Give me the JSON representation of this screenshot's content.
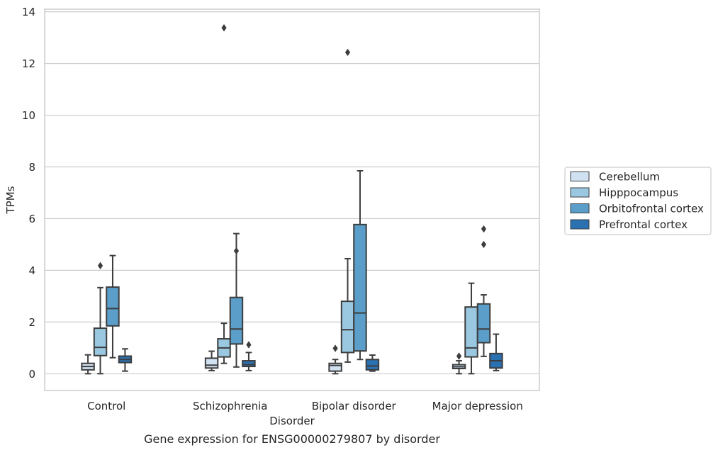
{
  "chart_data": {
    "type": "box",
    "caption": "Gene expression for ENSG00000279807 by disorder",
    "xlabel": "Disorder",
    "ylabel": "TPMs",
    "ylim": [
      -0.65,
      14.1
    ],
    "yticks": [
      0,
      2,
      4,
      6,
      8,
      10,
      12,
      14
    ],
    "grid": "horizontal",
    "legend_position": "right",
    "categories": [
      "Control",
      "Schizophrenia",
      "Bipolar disorder",
      "Major depression"
    ],
    "series": [
      {
        "name": "Cerebellum",
        "color": "#d0e1f2",
        "boxes": [
          {
            "min": 0.0,
            "q1": 0.15,
            "median": 0.28,
            "q3": 0.4,
            "max": 0.73,
            "outliers": []
          },
          {
            "min": 0.12,
            "q1": 0.22,
            "median": 0.33,
            "q3": 0.6,
            "max": 0.87,
            "outliers": []
          },
          {
            "min": 0.0,
            "q1": 0.1,
            "median": 0.32,
            "q3": 0.4,
            "max": 0.55,
            "outliers": [
              0.98
            ]
          },
          {
            "min": 0.0,
            "q1": 0.2,
            "median": 0.27,
            "q3": 0.35,
            "max": 0.5,
            "outliers": [
              0.68
            ]
          }
        ]
      },
      {
        "name": "Hipppocampus",
        "color": "#9ac8e0",
        "boxes": [
          {
            "min": 0.0,
            "q1": 0.7,
            "median": 1.02,
            "q3": 1.76,
            "max": 3.33,
            "outliers": [
              4.18
            ]
          },
          {
            "min": 0.4,
            "q1": 0.65,
            "median": 1.0,
            "q3": 1.35,
            "max": 1.95,
            "outliers": [
              13.38
            ]
          },
          {
            "min": 0.45,
            "q1": 0.82,
            "median": 1.7,
            "q3": 2.8,
            "max": 4.45,
            "outliers": [
              12.43
            ]
          },
          {
            "min": 0.0,
            "q1": 0.65,
            "median": 1.0,
            "q3": 2.58,
            "max": 3.5,
            "outliers": []
          }
        ]
      },
      {
        "name": "Orbitofrontal cortex",
        "color": "#5a9ec9",
        "boxes": [
          {
            "min": 0.62,
            "q1": 1.85,
            "median": 2.52,
            "q3": 3.35,
            "max": 4.57,
            "outliers": []
          },
          {
            "min": 0.26,
            "q1": 1.15,
            "median": 1.73,
            "q3": 2.95,
            "max": 5.42,
            "outliers": [
              4.75
            ]
          },
          {
            "min": 0.55,
            "q1": 0.88,
            "median": 2.35,
            "q3": 5.77,
            "max": 7.85,
            "outliers": []
          },
          {
            "min": 0.67,
            "q1": 1.2,
            "median": 1.73,
            "q3": 2.7,
            "max": 3.05,
            "outliers": [
              5.0,
              5.6
            ]
          }
        ]
      },
      {
        "name": "Prefrontal cortex",
        "color": "#2a71b2",
        "boxes": [
          {
            "min": 0.1,
            "q1": 0.43,
            "median": 0.55,
            "q3": 0.68,
            "max": 0.96,
            "outliers": []
          },
          {
            "min": 0.12,
            "q1": 0.28,
            "median": 0.35,
            "q3": 0.5,
            "max": 0.82,
            "outliers": [
              1.12
            ]
          },
          {
            "min": 0.1,
            "q1": 0.15,
            "median": 0.3,
            "q3": 0.55,
            "max": 0.72,
            "outliers": []
          },
          {
            "min": 0.12,
            "q1": 0.22,
            "median": 0.5,
            "q3": 0.78,
            "max": 1.53,
            "outliers": []
          }
        ]
      }
    ]
  }
}
